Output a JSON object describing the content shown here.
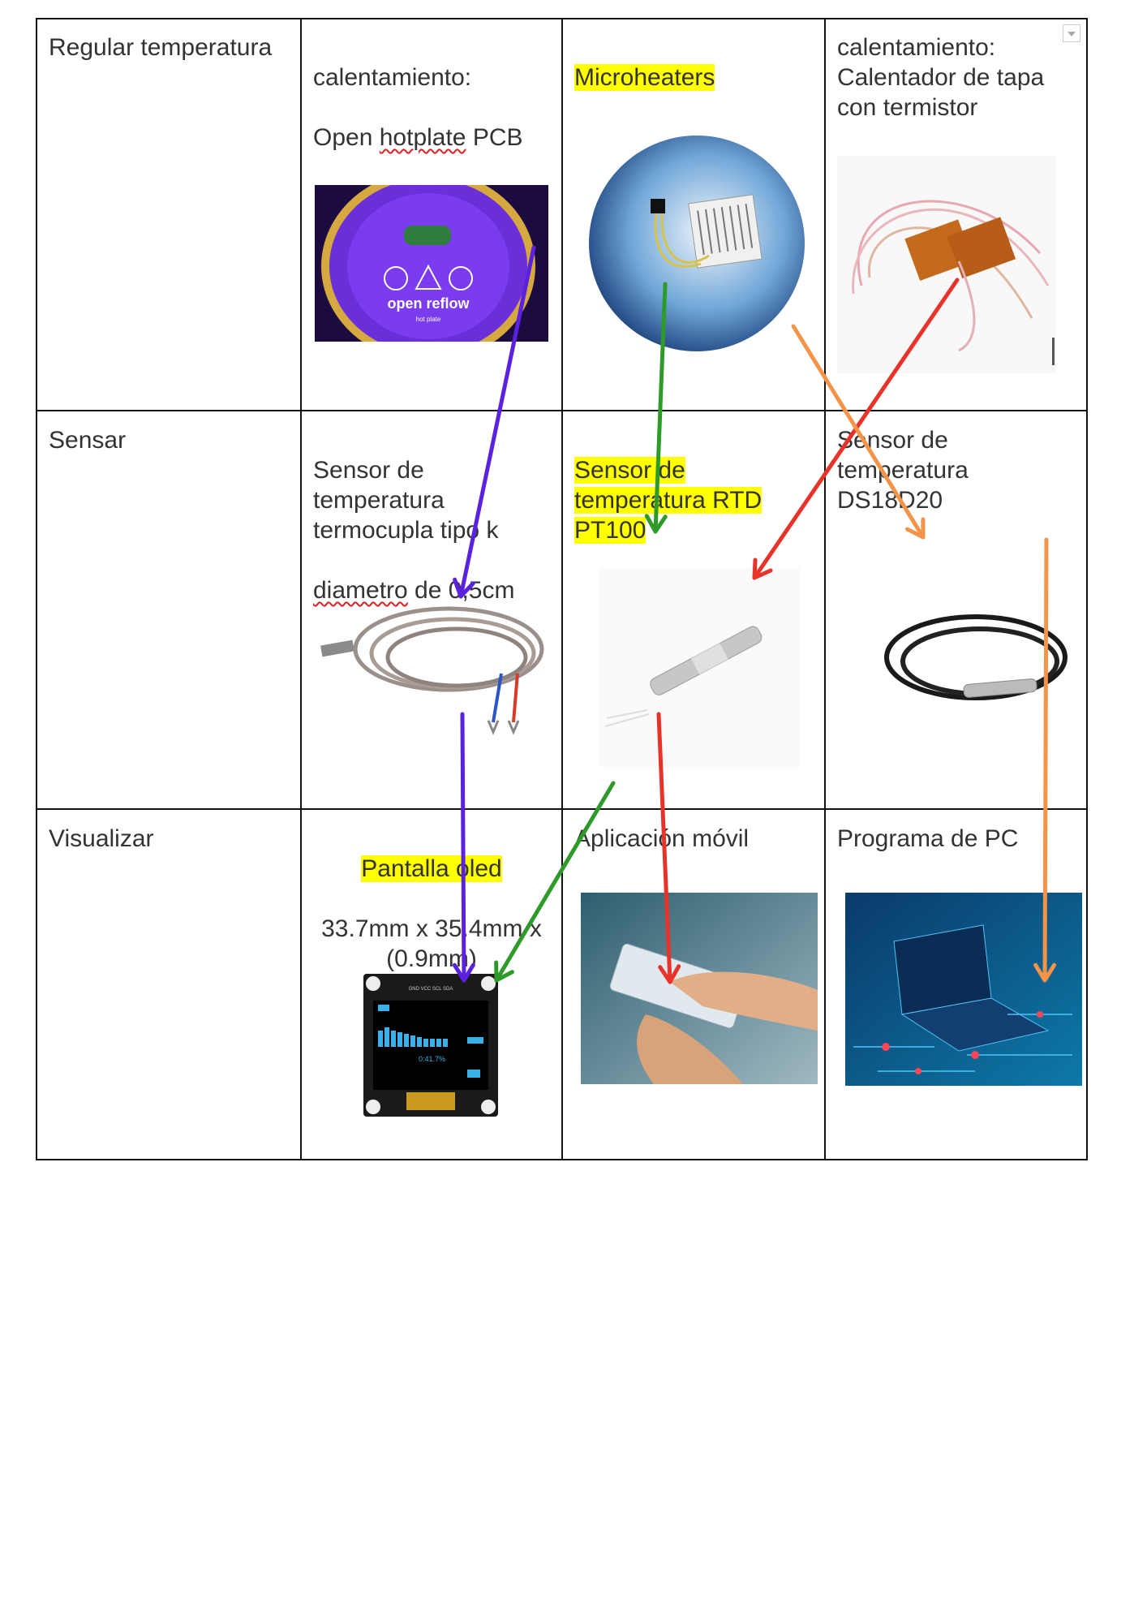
{
  "rows": [
    {
      "label": "Regular temperatura",
      "cells": [
        {
          "line1": "calentamiento:",
          "line2_pre": "Open ",
          "line2_spell": "hotplate",
          "line2_post": " PCB",
          "image": "open-reflow-hotplate-pcb",
          "image_text_main": "open reflow",
          "image_text_sub": "hot plate"
        },
        {
          "text": "Microheaters",
          "highlight": true,
          "image": "microheater"
        },
        {
          "text": "calentamiento:\nCalentador de tapa\ncon termistor",
          "image": "polyimide-heater-with-thermistor"
        }
      ]
    },
    {
      "label": "Sensar",
      "cells": [
        {
          "text": "Sensor de\ntemperatura\ntermocupla tipo k",
          "line4_spell": "diametro",
          "line4_post": " de 0,5cm",
          "image": "thermocouple-k"
        },
        {
          "text": "Sensor de\ntemperatura RTD\nPT100",
          "highlight": true,
          "image": "rtd-pt100-probe"
        },
        {
          "text": "Sensor de\ntemperatura\nDS18D20",
          "image": "ds18b20-probe"
        }
      ]
    },
    {
      "label": "Visualizar",
      "cells": [
        {
          "title": "Pantalla oled",
          "title_highlight": true,
          "text": "33.7mm x 35.4mm x\n(0.9mm)",
          "image": "oled-display",
          "image_pins": "GND VCC SCL SDA",
          "image_readout": "0:41.7%"
        },
        {
          "text": "Aplicación móvil",
          "image": "smartphone-hands"
        },
        {
          "text": "Programa de PC",
          "image": "laptop-circuit"
        }
      ]
    }
  ],
  "arrow_colors": {
    "purple": "#5b21e0",
    "green": "#2e9a2a",
    "red": "#e8332a",
    "orange": "#f39449"
  },
  "comment_icon": "dropdown-comment-icon"
}
